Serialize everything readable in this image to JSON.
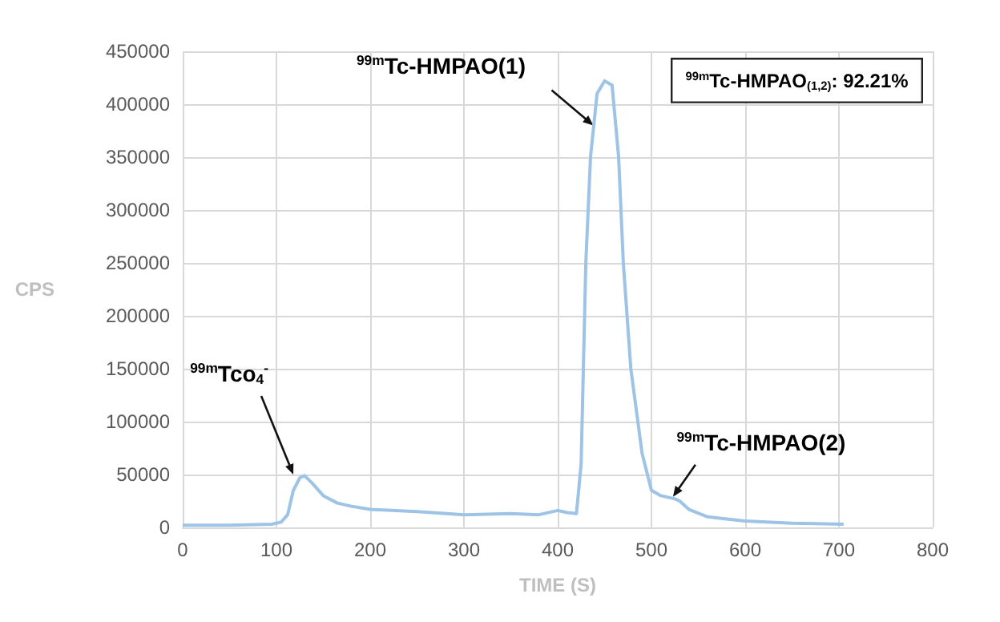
{
  "chart_data": {
    "type": "line",
    "xlabel": "TIME (S)",
    "ylabel": "CPS",
    "x": [
      0,
      50,
      95,
      105,
      112,
      118,
      125,
      130,
      138,
      150,
      165,
      180,
      200,
      250,
      300,
      350,
      380,
      400,
      410,
      420,
      425,
      430,
      435,
      442,
      450,
      458,
      465,
      470,
      478,
      490,
      500,
      510,
      525,
      530,
      540,
      560,
      580,
      600,
      650,
      705
    ],
    "series": [
      {
        "color": "#9dc3e6",
        "values": [
          2000,
          2000,
          3000,
          5000,
          12000,
          35000,
          47000,
          49000,
          42000,
          30000,
          23000,
          20000,
          17000,
          15000,
          12000,
          13000,
          12000,
          16000,
          14000,
          13000,
          60000,
          250000,
          350000,
          410000,
          422000,
          418000,
          350000,
          250000,
          150000,
          70000,
          35000,
          30000,
          27000,
          25000,
          17000,
          10000,
          8000,
          6000,
          4000,
          3000
        ]
      }
    ],
    "xlim": [
      0,
      800
    ],
    "xticks": [
      0,
      100,
      200,
      300,
      400,
      500,
      600,
      700,
      800
    ],
    "ylim": [
      0,
      450000
    ],
    "yticks": [
      0,
      50000,
      100000,
      150000,
      200000,
      250000,
      300000,
      350000,
      400000,
      450000
    ],
    "grid": true,
    "marker": "none",
    "line_style": "solid",
    "annotations": [
      {
        "text": "$^{99m}$Tco$_{4}$$^{-}$",
        "x": 118,
        "y": 50000
      },
      {
        "text": "$^{99m}$Tc-HMPAO(1)",
        "x": 438,
        "y": 380000
      },
      {
        "text": "$^{99m}$Tc-HMPAO(2)",
        "x": 523,
        "y": 29000
      },
      "$^{99m}$Tc-HMPAO$_{(1,2)}$: 92.21%"
    ]
  }
}
